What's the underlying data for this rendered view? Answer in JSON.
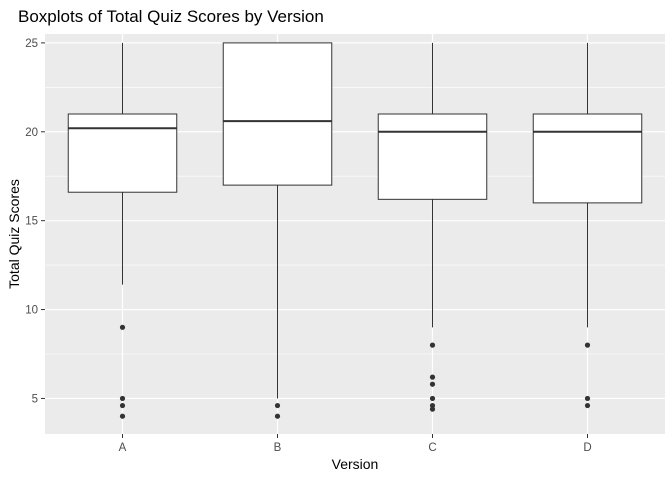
{
  "chart_data": {
    "type": "boxplot",
    "title": "Boxplots of Total Quiz Scores by Version",
    "xlabel": "Version",
    "ylabel": "Total Quiz Scores",
    "ylim": [
      3,
      25.5
    ],
    "yticks": [
      5,
      10,
      15,
      20,
      25
    ],
    "grid": true,
    "categories": [
      "A",
      "B",
      "C",
      "D"
    ],
    "boxes": [
      {
        "category": "A",
        "whisker_low": 11.4,
        "q1": 16.6,
        "median": 20.2,
        "q3": 21.0,
        "whisker_high": 25,
        "outliers": [
          9.0,
          5.0,
          4.6,
          4.0
        ]
      },
      {
        "category": "B",
        "whisker_low": 5.0,
        "q1": 17.0,
        "median": 20.6,
        "q3": 25.0,
        "whisker_high": 25,
        "outliers": [
          4.6,
          4.0
        ]
      },
      {
        "category": "C",
        "whisker_low": 9.0,
        "q1": 16.2,
        "median": 20.0,
        "q3": 21.0,
        "whisker_high": 25,
        "outliers": [
          8.0,
          6.2,
          5.8,
          5.0,
          4.6,
          4.4
        ]
      },
      {
        "category": "D",
        "whisker_low": 9.0,
        "q1": 16.0,
        "median": 20.0,
        "q3": 21.0,
        "whisker_high": 25,
        "outliers": [
          8.0,
          5.0,
          4.6
        ]
      }
    ],
    "colors": {
      "panel_background": "#ebebeb",
      "grid_major": "#ffffff",
      "box_fill": "#ffffff",
      "box_stroke": "#333333",
      "outlier": "#333333"
    }
  }
}
